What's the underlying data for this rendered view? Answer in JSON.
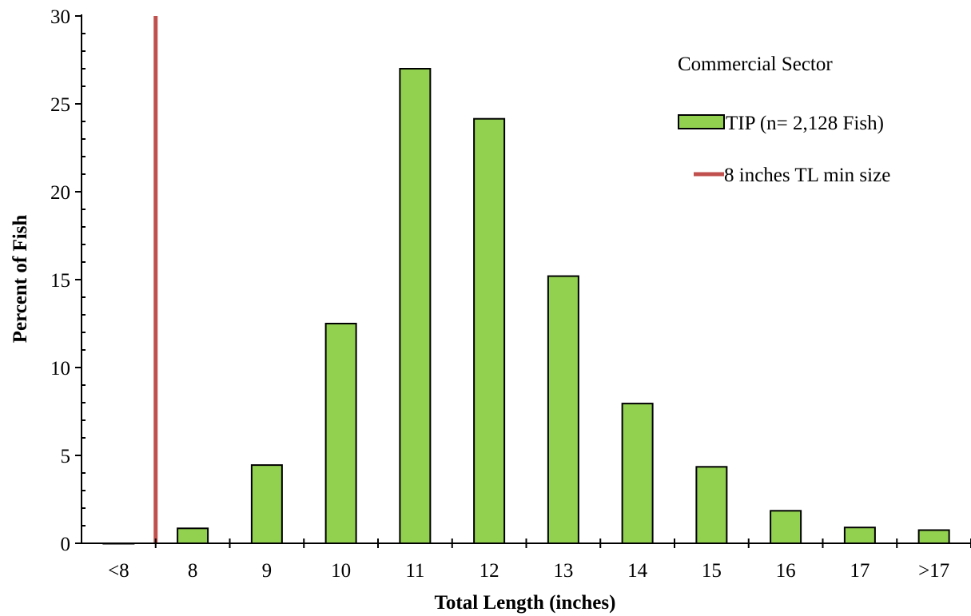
{
  "chart_data": {
    "type": "bar",
    "categories": [
      "<8",
      "8",
      "9",
      "10",
      "11",
      "12",
      "13",
      "14",
      "15",
      "16",
      "17",
      ">17"
    ],
    "series": [
      {
        "name": "TIP (n= 2,128 Fish)",
        "values": [
          0.0,
          0.85,
          4.45,
          12.5,
          27.0,
          24.15,
          15.2,
          7.95,
          4.35,
          1.85,
          0.9,
          0.75
        ],
        "color": "#92d050"
      }
    ],
    "reference_line": {
      "label": "8 inches TL min size",
      "position": "between <8 and 8",
      "color": "#c0504d"
    },
    "legend_title": "Commercial Sector",
    "xlabel": "Total Length (inches)",
    "ylabel": "Percent of Fish",
    "ylim": [
      0,
      30
    ],
    "yticks": [
      0,
      5,
      10,
      15,
      20,
      25,
      30
    ],
    "grid": false,
    "legend_position": "top-right"
  }
}
